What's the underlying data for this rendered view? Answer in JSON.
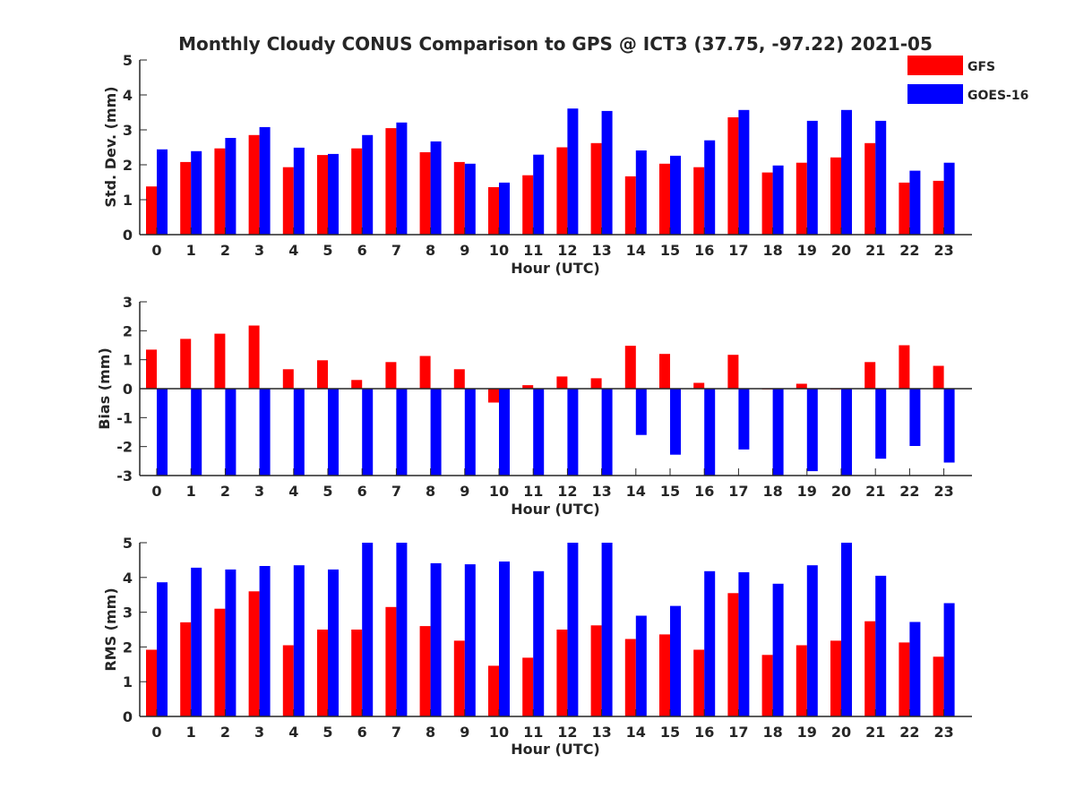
{
  "figure_title": "Monthly Cloudy CONUS Comparison to GPS @ ICT3 (37.75, -97.22) 2021-05",
  "legend": [
    {
      "label": "GFS",
      "color": "#ff0000"
    },
    {
      "label": "GOES-16",
      "color": "#0000ff"
    }
  ],
  "chart_data": [
    {
      "type": "bar",
      "ylabel": "Std. Dev. (mm)",
      "xlabel": "Hour (UTC)",
      "ylim": [
        0,
        5
      ],
      "yticks": [
        "0",
        "1",
        "2",
        "3",
        "4",
        "5"
      ],
      "categories": [
        "0",
        "1",
        "2",
        "3",
        "4",
        "5",
        "6",
        "7",
        "8",
        "9",
        "10",
        "11",
        "12",
        "13",
        "14",
        "15",
        "16",
        "17",
        "18",
        "19",
        "20",
        "21",
        "22",
        "23"
      ],
      "series": [
        {
          "name": "GFS",
          "color": "#ff0000",
          "values": [
            1.38,
            2.08,
            2.47,
            2.85,
            1.93,
            2.28,
            2.47,
            3.05,
            2.36,
            2.08,
            1.36,
            1.7,
            2.5,
            2.62,
            1.67,
            2.03,
            1.93,
            3.36,
            1.78,
            2.06,
            2.21,
            2.62,
            1.49,
            1.54
          ]
        },
        {
          "name": "GOES-16",
          "color": "#0000ff",
          "values": [
            2.44,
            2.39,
            2.77,
            3.08,
            2.49,
            2.31,
            2.85,
            3.21,
            2.67,
            2.03,
            1.49,
            2.29,
            3.61,
            3.54,
            2.41,
            2.26,
            2.7,
            3.57,
            1.98,
            3.26,
            3.57,
            3.26,
            1.83,
            2.06
          ]
        }
      ]
    },
    {
      "type": "bar",
      "ylabel": "Bias (mm)",
      "xlabel": "Hour (UTC)",
      "ylim": [
        -3,
        3
      ],
      "yticks": [
        "-3",
        "-2",
        "-1",
        "0",
        "1",
        "2",
        "3"
      ],
      "categories": [
        "0",
        "1",
        "2",
        "3",
        "4",
        "5",
        "6",
        "7",
        "8",
        "9",
        "10",
        "11",
        "12",
        "13",
        "14",
        "15",
        "16",
        "17",
        "18",
        "19",
        "20",
        "21",
        "22",
        "23"
      ],
      "series": [
        {
          "name": "GFS",
          "color": "#ff0000",
          "values": [
            1.35,
            1.72,
            1.9,
            2.18,
            0.67,
            0.98,
            0.3,
            0.92,
            1.13,
            0.67,
            -0.48,
            0.12,
            0.42,
            0.36,
            1.48,
            1.2,
            0.2,
            1.17,
            -0.02,
            0.17,
            0.0,
            0.92,
            1.5,
            0.79
          ]
        },
        {
          "name": "GOES-16",
          "color": "#0000ff",
          "values": [
            -3.0,
            -3.0,
            -3.0,
            -3.0,
            -3.0,
            -3.0,
            -3.0,
            -3.0,
            -3.0,
            -3.0,
            -3.0,
            -3.0,
            -3.0,
            -3.0,
            -1.6,
            -2.28,
            -3.0,
            -2.1,
            -3.0,
            -2.85,
            -3.0,
            -2.42,
            -1.98,
            -2.55
          ]
        }
      ]
    },
    {
      "type": "bar",
      "ylabel": "RMS (mm)",
      "xlabel": "Hour (UTC)",
      "ylim": [
        0,
        5
      ],
      "yticks": [
        "0",
        "1",
        "2",
        "3",
        "4",
        "5"
      ],
      "categories": [
        "0",
        "1",
        "2",
        "3",
        "4",
        "5",
        "6",
        "7",
        "8",
        "9",
        "10",
        "11",
        "12",
        "13",
        "14",
        "15",
        "16",
        "17",
        "18",
        "19",
        "20",
        "21",
        "22",
        "23"
      ],
      "series": [
        {
          "name": "GFS",
          "color": "#ff0000",
          "values": [
            1.92,
            2.71,
            3.1,
            3.6,
            2.05,
            2.5,
            2.5,
            3.15,
            2.6,
            2.18,
            1.46,
            1.69,
            2.5,
            2.62,
            2.23,
            2.36,
            1.92,
            3.55,
            1.77,
            2.05,
            2.18,
            2.74,
            2.13,
            1.72
          ]
        },
        {
          "name": "GOES-16",
          "color": "#0000ff",
          "values": [
            3.86,
            4.28,
            4.23,
            4.33,
            4.35,
            4.23,
            5.0,
            5.0,
            4.41,
            4.38,
            4.46,
            4.18,
            5.0,
            5.0,
            2.9,
            3.18,
            4.18,
            4.15,
            3.82,
            4.35,
            5.0,
            4.05,
            2.72,
            3.26
          ]
        }
      ]
    }
  ]
}
